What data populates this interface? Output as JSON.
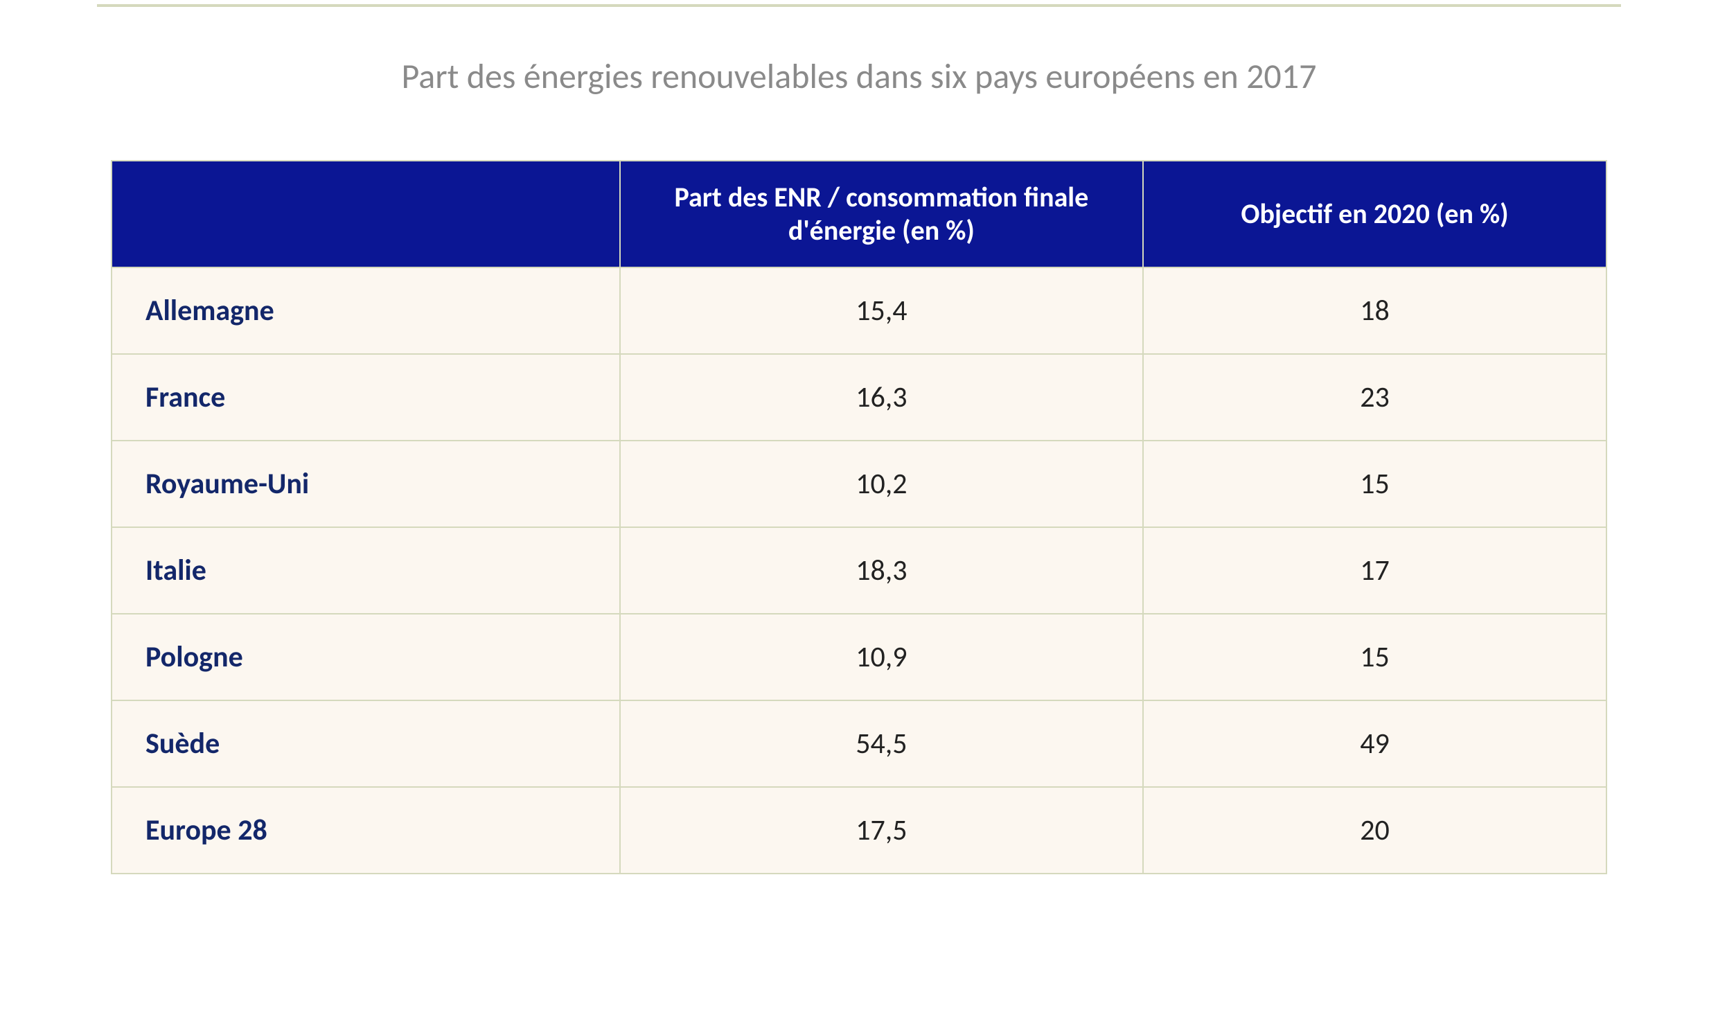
{
  "title": "Part des énergies renouvelables dans six pays européens en 2017",
  "table": {
    "type": "table",
    "header_bg_color": "#0b1694",
    "header_text_color": "#ffffff",
    "cell_bg_color": "#fcf7f0",
    "border_color": "#d5d9bd",
    "country_text_color": "#13276a",
    "value_text_color": "#222222",
    "title_color": "#8a8a8a",
    "title_fontsize": 50,
    "header_fontsize": 40,
    "cell_fontsize": 42,
    "columns": [
      "",
      "Part des ENR / consommation finale d'énergie (en %)",
      "Objectif en 2020 (en %)"
    ],
    "rows": [
      {
        "country": "Allemagne",
        "value": "15,4",
        "target": "18"
      },
      {
        "country": "France",
        "value": "16,3",
        "target": "23"
      },
      {
        "country": "Royaume-Uni",
        "value": "10,2",
        "target": "15"
      },
      {
        "country": "Italie",
        "value": "18,3",
        "target": "17"
      },
      {
        "country": "Pologne",
        "value": "10,9",
        "target": "15"
      },
      {
        "country": "Suède",
        "value": "54,5",
        "target": "49"
      },
      {
        "country": "Europe 28",
        "value": "17,5",
        "target": "20"
      }
    ]
  }
}
